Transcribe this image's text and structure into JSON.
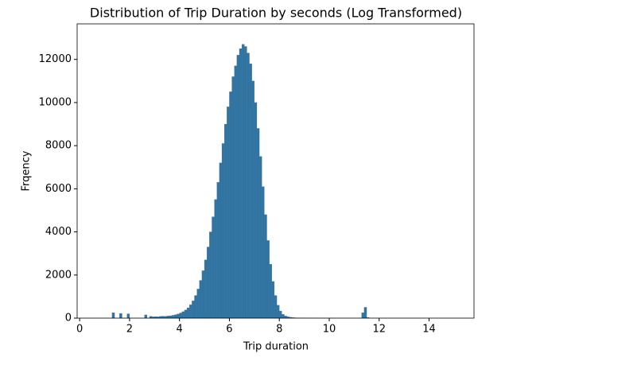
{
  "chart_data": {
    "type": "histogram",
    "title": "Distribution of Trip Duration by seconds (Log Transformed)",
    "x_label": "Trip duration",
    "y_label": "Frqency",
    "color": "#3274a1",
    "bins": [
      0,
      0.1,
      0.2,
      0.3,
      0.4,
      0.5,
      0.6,
      0.7,
      0.8,
      0.9,
      1,
      1.1,
      1.2,
      1.3,
      1.4,
      1.5,
      1.6,
      1.7,
      1.8,
      1.9,
      2,
      2.1,
      2.2,
      2.3,
      2.4,
      2.5,
      2.6,
      2.7,
      2.8,
      2.9,
      3,
      3.1,
      3.2,
      3.3,
      3.4,
      3.5,
      3.6,
      3.7,
      3.8,
      3.9,
      4,
      4.1,
      4.2,
      4.3,
      4.4,
      4.5,
      4.6,
      4.7,
      4.8,
      4.9,
      5,
      5.1,
      5.2,
      5.3,
      5.4,
      5.5,
      5.6,
      5.7,
      5.8,
      5.9,
      6,
      6.1,
      6.2,
      6.3,
      6.4,
      6.5,
      6.6,
      6.7,
      6.8,
      6.9,
      7,
      7.1,
      7.2,
      7.3,
      7.4,
      7.5,
      7.6,
      7.7,
      7.8,
      7.9,
      8,
      8.1,
      8.2,
      8.3,
      8.4,
      8.5,
      8.6,
      8.7,
      8.8,
      8.9,
      9,
      9.1,
      9.2,
      9.3,
      9.4,
      9.5,
      9.6,
      9.7,
      9.8,
      9.9,
      10,
      10.1,
      10.2,
      10.3,
      10.4,
      10.5,
      10.6,
      10.7,
      10.8,
      10.9,
      11,
      11.1,
      11.2,
      11.3,
      11.4,
      11.5,
      11.6,
      11.7,
      11.8,
      11.9,
      12,
      12.1,
      12.2,
      12.3,
      12.4,
      12.5,
      12.6,
      12.7,
      12.8,
      12.9,
      13,
      13.1,
      13.2,
      13.3,
      13.4,
      13.5,
      13.6,
      13.7,
      13.8,
      13.9,
      14,
      14.1,
      14.2,
      14.3,
      14.4,
      14.5,
      14.6,
      14.7,
      14.8,
      14.9,
      15,
      15.1,
      15.2
    ],
    "values": [
      0,
      0,
      0,
      0,
      0,
      0,
      0,
      0,
      0,
      0,
      0,
      0,
      0,
      250,
      0,
      0,
      220,
      0,
      0,
      200,
      0,
      0,
      0,
      0,
      0,
      0,
      150,
      0,
      80,
      60,
      70,
      60,
      80,
      90,
      80,
      100,
      110,
      130,
      160,
      190,
      240,
      300,
      380,
      480,
      620,
      800,
      1050,
      1350,
      1750,
      2200,
      2700,
      3300,
      4000,
      4700,
      5500,
      6300,
      7200,
      8100,
      9000,
      9800,
      10500,
      11200,
      11700,
      12200,
      12500,
      12700,
      12600,
      12300,
      11800,
      11000,
      10000,
      8800,
      7500,
      6100,
      4800,
      3600,
      2500,
      1700,
      1050,
      600,
      330,
      180,
      100,
      60,
      40,
      25,
      15,
      10,
      8,
      6,
      5,
      4,
      3,
      3,
      2,
      2,
      2,
      1,
      1,
      1,
      1,
      1,
      0,
      0,
      0,
      0,
      0,
      0,
      0,
      0,
      0,
      0,
      0,
      250,
      500,
      30,
      0,
      0,
      0,
      0,
      0,
      0,
      0,
      0,
      0,
      0,
      0,
      0,
      0,
      0,
      0,
      0,
      0,
      0,
      0,
      0,
      0,
      0,
      0,
      0,
      0,
      0,
      0,
      0,
      0,
      0,
      0,
      0,
      0,
      0,
      0,
      0
    ],
    "xlim": [
      -0.1,
      15.8
    ],
    "ylim": [
      0,
      13650
    ],
    "xticks": [
      0,
      2,
      4,
      6,
      8,
      10,
      12,
      14
    ],
    "yticks": [
      0,
      2000,
      4000,
      6000,
      8000,
      10000,
      12000
    ]
  }
}
